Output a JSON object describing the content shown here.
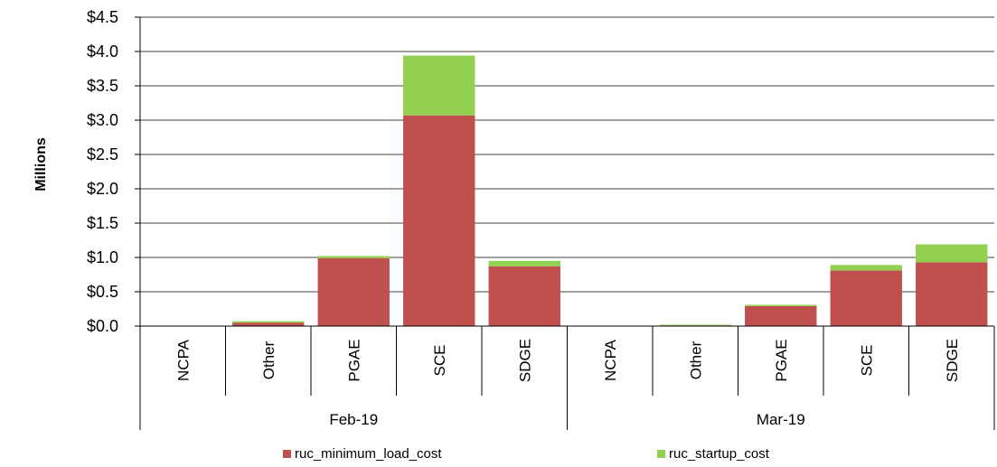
{
  "chart_data": {
    "type": "bar",
    "stacked": true,
    "ylabel": "Millions",
    "ylim": [
      0,
      4.5
    ],
    "yticks": [
      "$0.0",
      "$0.5",
      "$1.0",
      "$1.5",
      "$2.0",
      "$2.5",
      "$3.0",
      "$3.5",
      "$4.0",
      "$4.5"
    ],
    "ytick_values": [
      0,
      0.5,
      1.0,
      1.5,
      2.0,
      2.5,
      3.0,
      3.5,
      4.0,
      4.5
    ],
    "grid": true,
    "legend_position": "bottom",
    "groups": [
      {
        "label": "Feb-19",
        "categories": [
          "NCPA",
          "Other",
          "PGAE",
          "SCE",
          "SDGE"
        ]
      },
      {
        "label": "Mar-19",
        "categories": [
          "NCPA",
          "Other",
          "PGAE",
          "SCE",
          "SDGE"
        ]
      }
    ],
    "series": [
      {
        "name": "ruc_minimum_load_cost",
        "color": "#c0504d",
        "values": [
          0.0,
          0.05,
          0.99,
          3.07,
          0.87,
          0.0,
          0.01,
          0.29,
          0.81,
          0.93
        ]
      },
      {
        "name": "ruc_startup_cost",
        "color": "#92d050",
        "values": [
          0.0,
          0.02,
          0.03,
          0.87,
          0.08,
          0.0,
          0.01,
          0.02,
          0.08,
          0.26
        ]
      }
    ]
  }
}
